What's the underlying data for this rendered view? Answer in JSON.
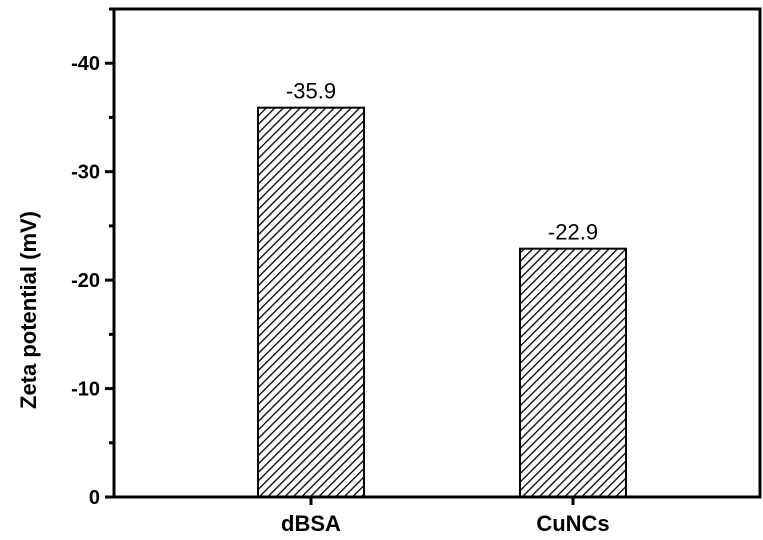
{
  "chart_data": {
    "type": "bar",
    "categories": [
      "dBSA",
      "CuNCs"
    ],
    "values": [
      -35.9,
      -22.9
    ],
    "data_labels": [
      "-35.9",
      "-22.9"
    ],
    "ylabel": "Zeta potential (mV)",
    "xlabel": "",
    "ylim": [
      0,
      -45
    ],
    "yticks": [
      0,
      -10,
      -20,
      -30,
      -40
    ],
    "ytick_labels": [
      "0",
      "-10",
      "-20",
      "-30",
      "-40"
    ],
    "bar_fill": "hatched",
    "bar_color": "#000000",
    "grid": false,
    "legend": "none"
  }
}
